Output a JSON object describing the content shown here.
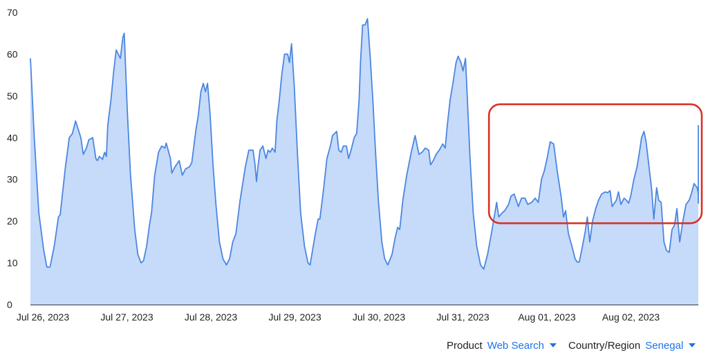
{
  "colors": {
    "line": "#4a86e0",
    "fill": "#c6dafa",
    "highlight": "#d93025",
    "axis": "#333333",
    "filter_value": "#1a73e8"
  },
  "filters": {
    "product_label": "Product",
    "product_value": "Web Search",
    "region_label": "Country/Region",
    "region_value": "Senegal",
    "dropdown_icon": "caret-down-icon"
  },
  "chart_data": {
    "type": "area",
    "title": "",
    "xlabel": "",
    "ylabel": "",
    "ylim": [
      0,
      70
    ],
    "y_ticks": [
      0,
      10,
      20,
      30,
      40,
      50,
      60,
      70
    ],
    "x_ticks": [
      "Jul 26, 2023",
      "Jul 27, 2023",
      "Jul 28, 2023",
      "Jul 29, 2023",
      "Jul 30, 2023",
      "Jul 31, 2023",
      "Aug 01, 2023",
      "Aug 02, 2023"
    ],
    "grid": false,
    "legend": "none",
    "x_unit": "hours since Jul 26, 2023 00:00",
    "x_range": [
      0,
      192
    ],
    "series": [
      {
        "values": [
          [
            0,
            59
          ],
          [
            1.1,
            40
          ],
          [
            2.4,
            22
          ],
          [
            3.8,
            13
          ],
          [
            4.7,
            9
          ],
          [
            5.6,
            9
          ],
          [
            6.8,
            14
          ],
          [
            8,
            21
          ],
          [
            8.5,
            21.5
          ],
          [
            10,
            33
          ],
          [
            11.1,
            40
          ],
          [
            12,
            41
          ],
          [
            12.9,
            44
          ],
          [
            14.4,
            40
          ],
          [
            15.1,
            36
          ],
          [
            16,
            37.5
          ],
          [
            16.7,
            39.5
          ],
          [
            17.8,
            40
          ],
          [
            18.7,
            35
          ],
          [
            19.1,
            34.5
          ],
          [
            19.7,
            35.5
          ],
          [
            20.6,
            34.8
          ],
          [
            21.2,
            36.5
          ],
          [
            21.7,
            35.5
          ],
          [
            22.1,
            43
          ],
          [
            23,
            49
          ],
          [
            23.8,
            56
          ],
          [
            24.5,
            61
          ],
          [
            25.7,
            59
          ],
          [
            26.4,
            64
          ],
          [
            26.8,
            65
          ],
          [
            27.7,
            46
          ],
          [
            28.6,
            31
          ],
          [
            29.8,
            18
          ],
          [
            30.7,
            12
          ],
          [
            31.6,
            10
          ],
          [
            32.3,
            10.5
          ],
          [
            33.2,
            14
          ],
          [
            34,
            19
          ],
          [
            34.6,
            22
          ],
          [
            35.5,
            31
          ],
          [
            36.6,
            36.5
          ],
          [
            37.5,
            38
          ],
          [
            38.4,
            37.5
          ],
          [
            38.8,
            38.7
          ],
          [
            40,
            35
          ],
          [
            40.4,
            31.5
          ],
          [
            41.3,
            33
          ],
          [
            42.5,
            34.5
          ],
          [
            43.4,
            31
          ],
          [
            44.3,
            32.5
          ],
          [
            45.4,
            33
          ],
          [
            46.1,
            34
          ],
          [
            47.3,
            42
          ],
          [
            47.9,
            45
          ],
          [
            48.7,
            51
          ],
          [
            49.4,
            53
          ],
          [
            50,
            51
          ],
          [
            50.6,
            53
          ],
          [
            51.3,
            46
          ],
          [
            52.2,
            33
          ],
          [
            53,
            24
          ],
          [
            54,
            15
          ],
          [
            55,
            11
          ],
          [
            56,
            9.5
          ],
          [
            56.9,
            11
          ],
          [
            57.8,
            15
          ],
          [
            58.7,
            17
          ],
          [
            59.9,
            25
          ],
          [
            61.4,
            33
          ],
          [
            62.4,
            37
          ],
          [
            63.6,
            37
          ],
          [
            64.1,
            34
          ],
          [
            64.6,
            29.5
          ],
          [
            65,
            33
          ],
          [
            65.6,
            37
          ],
          [
            66.4,
            38
          ],
          [
            67.3,
            35
          ],
          [
            67.9,
            37
          ],
          [
            68.5,
            36.5
          ],
          [
            69.1,
            37.5
          ],
          [
            69.9,
            36.5
          ],
          [
            70.4,
            44
          ],
          [
            71.1,
            49
          ],
          [
            71.8,
            55
          ],
          [
            72.6,
            60
          ],
          [
            73.5,
            60
          ],
          [
            74,
            58
          ],
          [
            74.6,
            62.5
          ],
          [
            75.4,
            52
          ],
          [
            76.3,
            36
          ],
          [
            77.2,
            22
          ],
          [
            78.3,
            14
          ],
          [
            79.3,
            10
          ],
          [
            79.9,
            9.5
          ],
          [
            80.6,
            13
          ],
          [
            81.4,
            17
          ],
          [
            82.2,
            20.5
          ],
          [
            82.7,
            20.5
          ],
          [
            83.8,
            28
          ],
          [
            84.7,
            35
          ],
          [
            85.7,
            38
          ],
          [
            86.3,
            40.5
          ],
          [
            86.9,
            41
          ],
          [
            87.5,
            41.5
          ],
          [
            88.1,
            37
          ],
          [
            88.8,
            36.5
          ],
          [
            89.4,
            38
          ],
          [
            90.3,
            38
          ],
          [
            90.9,
            35
          ],
          [
            91.6,
            37
          ],
          [
            92.5,
            40
          ],
          [
            93.2,
            41
          ],
          [
            93.9,
            49
          ],
          [
            94.3,
            58
          ],
          [
            94.9,
            67
          ],
          [
            95.6,
            67
          ],
          [
            96.3,
            68.5
          ],
          [
            97.1,
            59
          ],
          [
            97.9,
            48
          ],
          [
            98.5,
            38
          ],
          [
            99.4,
            25
          ],
          [
            100.4,
            15
          ],
          [
            101.2,
            11
          ],
          [
            102.1,
            9.5
          ],
          [
            103.3,
            12
          ],
          [
            104.2,
            16
          ],
          [
            104.9,
            18.5
          ],
          [
            105.5,
            18
          ],
          [
            106.4,
            25
          ],
          [
            107.5,
            31
          ],
          [
            108.8,
            36.5
          ],
          [
            109.9,
            40.5
          ],
          [
            111,
            36
          ],
          [
            111.9,
            36.5
          ],
          [
            112.8,
            37.5
          ],
          [
            113.8,
            37
          ],
          [
            114.3,
            33.5
          ],
          [
            115.1,
            34.5
          ],
          [
            115.9,
            36
          ],
          [
            116.8,
            37
          ],
          [
            117.8,
            38.5
          ],
          [
            118.5,
            37.5
          ],
          [
            119.1,
            43
          ],
          [
            119.9,
            49
          ],
          [
            120.7,
            53
          ],
          [
            121.6,
            58
          ],
          [
            122.2,
            59.5
          ],
          [
            123,
            58
          ],
          [
            123.6,
            56
          ],
          [
            124.3,
            59
          ],
          [
            124.9,
            48
          ],
          [
            125.6,
            35
          ],
          [
            126.5,
            22
          ],
          [
            127.5,
            14
          ],
          [
            128.6,
            9.5
          ],
          [
            129.5,
            8.5
          ],
          [
            130.6,
            12
          ],
          [
            131.9,
            18
          ],
          [
            132.5,
            21
          ],
          [
            133.2,
            24.5
          ],
          [
            133.8,
            21
          ],
          [
            134.8,
            22
          ],
          [
            135.5,
            22.5
          ],
          [
            136.6,
            24
          ],
          [
            137.3,
            26
          ],
          [
            138.2,
            26.5
          ],
          [
            139.4,
            23.5
          ],
          [
            140.3,
            25.5
          ],
          [
            141.3,
            25.5
          ],
          [
            142.1,
            24
          ],
          [
            143.2,
            24.5
          ],
          [
            144.2,
            25.5
          ],
          [
            145.1,
            24.5
          ],
          [
            146,
            30
          ],
          [
            146.8,
            32
          ],
          [
            147.6,
            35
          ],
          [
            148.5,
            39
          ],
          [
            149.5,
            38.5
          ],
          [
            150.5,
            32
          ],
          [
            151.6,
            26
          ],
          [
            152.3,
            21
          ],
          [
            152.9,
            22.5
          ],
          [
            153.7,
            17
          ],
          [
            154.7,
            14
          ],
          [
            155.6,
            11
          ],
          [
            156.2,
            10.2
          ],
          [
            156.8,
            10.2
          ],
          [
            157.6,
            13.5
          ],
          [
            158.5,
            17.5
          ],
          [
            159.1,
            21
          ],
          [
            159.8,
            15
          ],
          [
            160.6,
            20
          ],
          [
            161.5,
            23
          ],
          [
            162.3,
            25
          ],
          [
            163.2,
            26.5
          ],
          [
            164.2,
            27
          ],
          [
            164.9,
            26.8
          ],
          [
            165.6,
            27.3
          ],
          [
            166.2,
            23.5
          ],
          [
            167.4,
            25
          ],
          [
            168,
            27
          ],
          [
            168.7,
            24
          ],
          [
            169.6,
            25.5
          ],
          [
            170.3,
            25
          ],
          [
            170.9,
            24.3
          ],
          [
            171.5,
            26
          ],
          [
            172.4,
            30
          ],
          [
            173.3,
            33
          ],
          [
            173.9,
            36
          ],
          [
            174.6,
            40
          ],
          [
            175.3,
            41.5
          ],
          [
            175.9,
            39
          ],
          [
            176.6,
            34
          ],
          [
            177.5,
            27.5
          ],
          [
            178.1,
            20.5
          ],
          [
            178.9,
            28
          ],
          [
            179.5,
            25
          ],
          [
            180.2,
            24.5
          ],
          [
            181,
            15
          ],
          [
            181.7,
            13
          ],
          [
            182.5,
            12.5
          ],
          [
            183.3,
            18
          ],
          [
            184,
            19
          ],
          [
            184.7,
            23
          ],
          [
            185.5,
            15
          ],
          [
            186.3,
            19.5
          ],
          [
            187.3,
            24
          ],
          [
            188.2,
            25
          ],
          [
            188.8,
            26.5
          ],
          [
            189.6,
            29
          ],
          [
            190.5,
            28
          ],
          [
            191.1,
            26.5
          ],
          [
            191.6,
            24.3
          ],
          [
            192.4,
            25
          ],
          [
            192.9,
            27.5
          ],
          [
            193.6,
            27.5
          ],
          [
            194.4,
            25
          ],
          [
            195.2,
            25
          ],
          [
            195.9,
            25.3
          ],
          [
            196.6,
            26.2
          ],
          [
            197.2,
            25
          ],
          [
            197.8,
            30.5
          ],
          [
            198.6,
            33
          ],
          [
            199.3,
            38
          ],
          [
            200.1,
            42
          ],
          [
            200.7,
            41.5
          ],
          [
            201.3,
            43
          ]
        ]
      }
    ],
    "annotation": {
      "type": "highlight-box",
      "x_range": [
        131,
        201.5
      ],
      "y_range": [
        19.5,
        48
      ]
    }
  }
}
